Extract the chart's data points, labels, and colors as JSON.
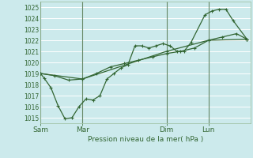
{
  "background_color": "#cceaec",
  "grid_color": "#ffffff",
  "line_color": "#336633",
  "xlabel": "Pression niveau de la mer( hPa )",
  "ylim": [
    1014.5,
    1025.5
  ],
  "yticks": [
    1015,
    1016,
    1017,
    1018,
    1019,
    1020,
    1021,
    1022,
    1023,
    1024,
    1025
  ],
  "xtick_labels": [
    "Sam",
    "Mar",
    "Dim",
    "Lun"
  ],
  "xtick_positions": [
    0,
    12,
    36,
    48
  ],
  "vline_positions": [
    0,
    12,
    36,
    48
  ],
  "xlim": [
    0,
    60
  ],
  "line1": [
    [
      0,
      1019.0
    ],
    [
      1,
      1018.6
    ],
    [
      3,
      1017.7
    ],
    [
      5,
      1016.1
    ],
    [
      7,
      1014.9
    ],
    [
      9,
      1015.0
    ],
    [
      11,
      1016.0
    ],
    [
      13,
      1016.7
    ],
    [
      15,
      1016.6
    ],
    [
      17,
      1017.0
    ],
    [
      19,
      1018.5
    ],
    [
      21,
      1019.0
    ],
    [
      23,
      1019.5
    ],
    [
      25,
      1019.8
    ],
    [
      27,
      1021.5
    ],
    [
      29,
      1021.5
    ],
    [
      31,
      1021.3
    ],
    [
      33,
      1021.5
    ],
    [
      35,
      1021.7
    ],
    [
      37,
      1021.5
    ],
    [
      39,
      1021.0
    ],
    [
      41,
      1021.0
    ],
    [
      43,
      1021.8
    ],
    [
      47,
      1024.3
    ],
    [
      49,
      1024.65
    ],
    [
      51,
      1024.8
    ],
    [
      53,
      1024.8
    ],
    [
      55,
      1023.8
    ],
    [
      59,
      1022.1
    ]
  ],
  "line2": [
    [
      0,
      1019.0
    ],
    [
      4,
      1018.8
    ],
    [
      8,
      1018.4
    ],
    [
      12,
      1018.5
    ],
    [
      16,
      1019.0
    ],
    [
      20,
      1019.6
    ],
    [
      24,
      1019.9
    ],
    [
      28,
      1020.2
    ],
    [
      32,
      1020.5
    ],
    [
      36,
      1020.8
    ],
    [
      40,
      1021.0
    ],
    [
      44,
      1021.3
    ],
    [
      48,
      1022.0
    ],
    [
      52,
      1022.3
    ],
    [
      56,
      1022.6
    ],
    [
      59,
      1022.1
    ]
  ],
  "line3": [
    [
      0,
      1019.0
    ],
    [
      12,
      1018.5
    ],
    [
      36,
      1021.0
    ],
    [
      48,
      1022.0
    ],
    [
      59,
      1022.1
    ]
  ]
}
